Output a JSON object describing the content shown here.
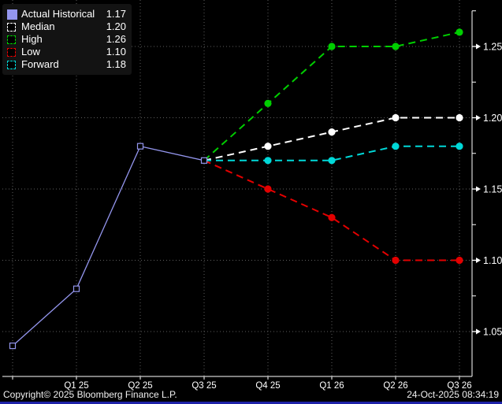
{
  "window": {
    "background": "#000000",
    "bottom_border_color": "#1E22A8"
  },
  "colors": {
    "grid": "#5E5E5E",
    "axis": "#FFFFFF",
    "text": "#FFFFFF",
    "legend_background": "#131313"
  },
  "legend": {
    "items": [
      {
        "label": "Actual Historical",
        "value": "1.17",
        "color": "#9496EE",
        "swatch": "filled"
      },
      {
        "label": "Median",
        "value": "1.20",
        "color": "#FFFFFF",
        "swatch": "dashed"
      },
      {
        "label": "High",
        "value": "1.26",
        "color": "#00CF00",
        "swatch": "dashed"
      },
      {
        "label": "Low",
        "value": "1.10",
        "color": "#E30000",
        "swatch": "dashed"
      },
      {
        "label": "Forward",
        "value": "1.18",
        "color": "#00D8D8",
        "swatch": "dashed"
      }
    ]
  },
  "footer": {
    "copyright": "Copyright© 2025 Bloomberg Finance L.P.",
    "timestamp": "24-Oct-2025 08:34:19"
  },
  "chart_data": {
    "type": "line",
    "title": "",
    "xlabel": "",
    "ylabel": "",
    "grid": true,
    "legend_position": "top-left",
    "categories": [
      "",
      "Q1 25",
      "Q2 25",
      "Q3 25",
      "Q4 25",
      "Q1 26",
      "Q2 26",
      "Q3 26"
    ],
    "ylim": [
      1.02,
      1.28
    ],
    "y_axis": {
      "tick_labels": [
        "1.25",
        "1.20",
        "1.15",
        "1.10",
        "1.05"
      ],
      "tick_values": [
        1.25,
        1.2,
        1.15,
        1.1,
        1.05
      ],
      "minor_step": 0.025,
      "side": "right"
    },
    "series": [
      {
        "name": "Actual Historical",
        "color": "#9496EE",
        "style": "solid",
        "marker": "square-open",
        "x": [
          0,
          1,
          2,
          3
        ],
        "values": [
          1.04,
          1.08,
          1.18,
          1.17
        ]
      },
      {
        "name": "Median",
        "color": "#FFFFFF",
        "style": "dashed",
        "marker": "circle",
        "marker_from": 1,
        "x": [
          3,
          4,
          5,
          6,
          7
        ],
        "values": [
          1.17,
          1.18,
          1.19,
          1.2,
          1.2
        ]
      },
      {
        "name": "High",
        "color": "#00CF00",
        "style": "dashed",
        "marker": "circle",
        "marker_from": 1,
        "x": [
          3,
          4,
          5,
          6,
          7
        ],
        "values": [
          1.17,
          1.21,
          1.25,
          1.25,
          1.26
        ]
      },
      {
        "name": "Low",
        "color": "#E30000",
        "style": "dashed",
        "marker": "circle",
        "marker_from": 1,
        "x": [
          3,
          4,
          5,
          6,
          7
        ],
        "values": [
          1.17,
          1.15,
          1.13,
          1.1,
          1.1
        ]
      },
      {
        "name": "Forward",
        "color": "#00D8D8",
        "style": "dashed",
        "marker": "circle",
        "marker_from": 1,
        "x": [
          3,
          4,
          5,
          6,
          7
        ],
        "values": [
          1.17,
          1.17,
          1.17,
          1.18,
          1.18
        ]
      }
    ]
  }
}
